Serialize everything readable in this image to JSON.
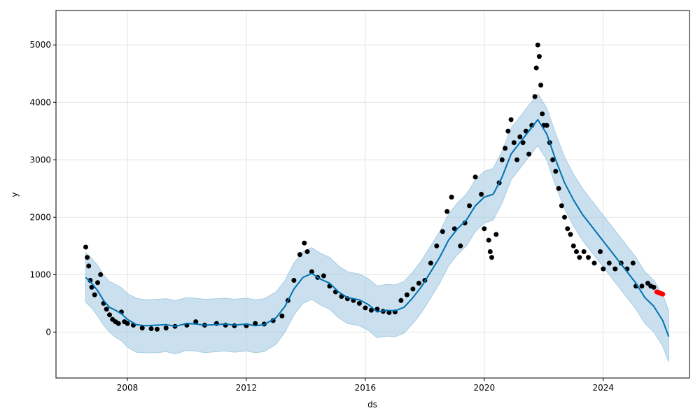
{
  "chart_data": {
    "type": "line",
    "title": "",
    "xlabel": "ds",
    "ylabel": "y",
    "xlim": [
      2005.6,
      2026.9
    ],
    "ylim": [
      -800,
      5600
    ],
    "x_ticks": [
      {
        "value": 2008,
        "label": "2008"
      },
      {
        "value": 2012,
        "label": "2012"
      },
      {
        "value": 2016,
        "label": "2016"
      },
      {
        "value": 2020,
        "label": "2020"
      },
      {
        "value": 2024,
        "label": "2024"
      }
    ],
    "y_ticks": [
      {
        "value": 0,
        "label": "0"
      },
      {
        "value": 1000,
        "label": "1000"
      },
      {
        "value": 2000,
        "label": "2000"
      },
      {
        "value": 3000,
        "label": "3000"
      },
      {
        "value": 4000,
        "label": "4000"
      },
      {
        "value": 5000,
        "label": "5000"
      }
    ],
    "grid": true,
    "colors": {
      "forecast": "#0072b2",
      "interval": "#a6cbe3",
      "observed": "#000000",
      "recent": "#ff0000"
    },
    "series": [
      {
        "role": "forecast",
        "x": [
          2006.6,
          2006.8,
          2007.0,
          2007.2,
          2007.4,
          2007.6,
          2007.8,
          2008.0,
          2008.3,
          2008.6,
          2009.0,
          2009.3,
          2009.6,
          2010.0,
          2010.3,
          2010.6,
          2011.0,
          2011.3,
          2011.6,
          2012.0,
          2012.3,
          2012.6,
          2013.0,
          2013.3,
          2013.6,
          2013.9,
          2014.2,
          2014.5,
          2014.8,
          2015.1,
          2015.4,
          2015.8,
          2016.1,
          2016.4,
          2016.7,
          2017.0,
          2017.3,
          2017.6,
          2017.9,
          2018.2,
          2018.5,
          2018.8,
          2019.1,
          2019.4,
          2019.7,
          2020.0,
          2020.3,
          2020.6,
          2020.9,
          2021.2,
          2021.5,
          2021.8,
          2022.1,
          2022.4,
          2022.7,
          2023.0,
          2023.3,
          2023.6,
          2023.9,
          2024.2,
          2024.5,
          2024.8,
          2025.1,
          2025.4,
          2025.7,
          2026.0,
          2026.2
        ],
        "y": [
          950,
          850,
          720,
          550,
          430,
          380,
          320,
          220,
          130,
          110,
          120,
          130,
          100,
          150,
          140,
          120,
          130,
          140,
          120,
          140,
          110,
          130,
          250,
          450,
          750,
          950,
          1020,
          920,
          850,
          700,
          600,
          560,
          480,
          350,
          380,
          370,
          430,
          600,
          800,
          1050,
          1300,
          1600,
          1800,
          1950,
          2200,
          2350,
          2400,
          2700,
          3100,
          3300,
          3500,
          3700,
          3450,
          3000,
          2600,
          2300,
          2050,
          1850,
          1650,
          1450,
          1250,
          1050,
          850,
          600,
          450,
          200,
          -80
        ]
      },
      {
        "role": "interval",
        "x": [
          2006.6,
          2006.8,
          2007.0,
          2007.2,
          2007.4,
          2007.6,
          2007.8,
          2008.0,
          2008.3,
          2008.6,
          2009.0,
          2009.3,
          2009.6,
          2010.0,
          2010.3,
          2010.6,
          2011.0,
          2011.3,
          2011.6,
          2012.0,
          2012.3,
          2012.6,
          2013.0,
          2013.3,
          2013.6,
          2013.9,
          2014.2,
          2014.5,
          2014.8,
          2015.1,
          2015.4,
          2015.8,
          2016.1,
          2016.4,
          2016.7,
          2017.0,
          2017.3,
          2017.6,
          2017.9,
          2018.2,
          2018.5,
          2018.8,
          2019.1,
          2019.4,
          2019.7,
          2020.0,
          2020.3,
          2020.6,
          2020.9,
          2021.2,
          2021.5,
          2021.8,
          2022.1,
          2022.4,
          2022.7,
          2023.0,
          2023.3,
          2023.6,
          2023.9,
          2024.2,
          2024.5,
          2024.8,
          2025.1,
          2025.4,
          2025.7,
          2026.0,
          2026.2
        ],
        "lower": [
          520,
          420,
          280,
          120,
          0,
          -90,
          -150,
          -260,
          -350,
          -360,
          -360,
          -340,
          -380,
          -320,
          -330,
          -360,
          -340,
          -330,
          -350,
          -330,
          -360,
          -340,
          -210,
          0,
          300,
          500,
          570,
          470,
          400,
          250,
          150,
          110,
          30,
          -100,
          -70,
          -80,
          -20,
          150,
          350,
          600,
          850,
          1150,
          1350,
          1500,
          1750,
          1900,
          1950,
          2250,
          2650,
          2850,
          3050,
          3250,
          3000,
          2550,
          2150,
          1850,
          1600,
          1400,
          1200,
          1000,
          800,
          600,
          400,
          150,
          0,
          -250,
          -520
        ],
        "upper": [
          1380,
          1280,
          1160,
          990,
          880,
          830,
          770,
          670,
          590,
          560,
          570,
          580,
          550,
          600,
          590,
          570,
          580,
          590,
          570,
          590,
          560,
          580,
          700,
          900,
          1200,
          1400,
          1470,
          1370,
          1300,
          1150,
          1050,
          1010,
          930,
          800,
          830,
          820,
          880,
          1050,
          1250,
          1500,
          1750,
          2050,
          2250,
          2400,
          2650,
          2800,
          2850,
          3150,
          3550,
          3750,
          3950,
          4150,
          3900,
          3450,
          3050,
          2750,
          2500,
          2300,
          2100,
          1900,
          1700,
          1500,
          1300,
          1050,
          900,
          650,
          370
        ]
      },
      {
        "role": "observed",
        "x": [
          2006.6,
          2006.65,
          2006.7,
          2006.75,
          2006.8,
          2006.9,
          2007.0,
          2007.1,
          2007.2,
          2007.3,
          2007.4,
          2007.5,
          2007.6,
          2007.7,
          2007.8,
          2007.9,
          2008.0,
          2008.2,
          2008.5,
          2008.8,
          2009.0,
          2009.3,
          2009.6,
          2010.0,
          2010.3,
          2010.6,
          2011.0,
          2011.3,
          2011.6,
          2012.0,
          2012.3,
          2012.6,
          2012.9,
          2013.2,
          2013.4,
          2013.6,
          2013.8,
          2013.95,
          2014.05,
          2014.2,
          2014.4,
          2014.6,
          2014.8,
          2015.0,
          2015.2,
          2015.4,
          2015.6,
          2015.8,
          2016.0,
          2016.2,
          2016.4,
          2016.6,
          2016.8,
          2017.0,
          2017.2,
          2017.4,
          2017.6,
          2017.8,
          2018.0,
          2018.2,
          2018.4,
          2018.6,
          2018.75,
          2018.9,
          2019.0,
          2019.2,
          2019.35,
          2019.5,
          2019.7,
          2019.9,
          2020.0,
          2020.15,
          2020.2,
          2020.25,
          2020.4,
          2020.5,
          2020.6,
          2020.7,
          2020.8,
          2020.9,
          2021.0,
          2021.1,
          2021.2,
          2021.3,
          2021.4,
          2021.5,
          2021.6,
          2021.7,
          2021.75,
          2021.8,
          2021.85,
          2021.9,
          2021.95,
          2022.0,
          2022.1,
          2022.2,
          2022.3,
          2022.4,
          2022.5,
          2022.6,
          2022.7,
          2022.8,
          2022.9,
          2023.0,
          2023.1,
          2023.2,
          2023.35,
          2023.5,
          2023.7,
          2023.9,
          2024.0,
          2024.2,
          2024.4,
          2024.6,
          2024.8,
          2025.0,
          2025.1,
          2025.3,
          2025.5,
          2025.6,
          2025.7
        ],
        "y": [
          1480,
          1300,
          1150,
          900,
          780,
          650,
          860,
          1000,
          500,
          400,
          300,
          220,
          180,
          150,
          350,
          180,
          150,
          120,
          70,
          60,
          50,
          70,
          100,
          120,
          180,
          120,
          150,
          120,
          110,
          110,
          150,
          140,
          200,
          280,
          550,
          900,
          1350,
          1550,
          1400,
          1050,
          950,
          980,
          800,
          700,
          620,
          580,
          550,
          500,
          420,
          380,
          400,
          360,
          340,
          350,
          550,
          650,
          750,
          850,
          900,
          1200,
          1500,
          1750,
          2100,
          2350,
          1800,
          1500,
          1900,
          2200,
          2700,
          2400,
          1800,
          1600,
          1400,
          1300,
          1700,
          2600,
          3000,
          3200,
          3500,
          3700,
          3300,
          3000,
          3400,
          3300,
          3500,
          3100,
          3600,
          4100,
          4600,
          5000,
          4800,
          4300,
          3800,
          3600,
          3600,
          3300,
          3000,
          2800,
          2500,
          2200,
          2000,
          1800,
          1700,
          1500,
          1400,
          1300,
          1400,
          1300,
          1200,
          1400,
          1100,
          1200,
          1100,
          1200,
          1100,
          1200,
          800,
          800,
          850,
          800,
          780
        ]
      },
      {
        "role": "recent",
        "x": [
          2025.8,
          2025.85,
          2025.9,
          2025.95,
          2026.0
        ],
        "y": [
          700,
          690,
          680,
          670,
          660
        ]
      }
    ]
  }
}
